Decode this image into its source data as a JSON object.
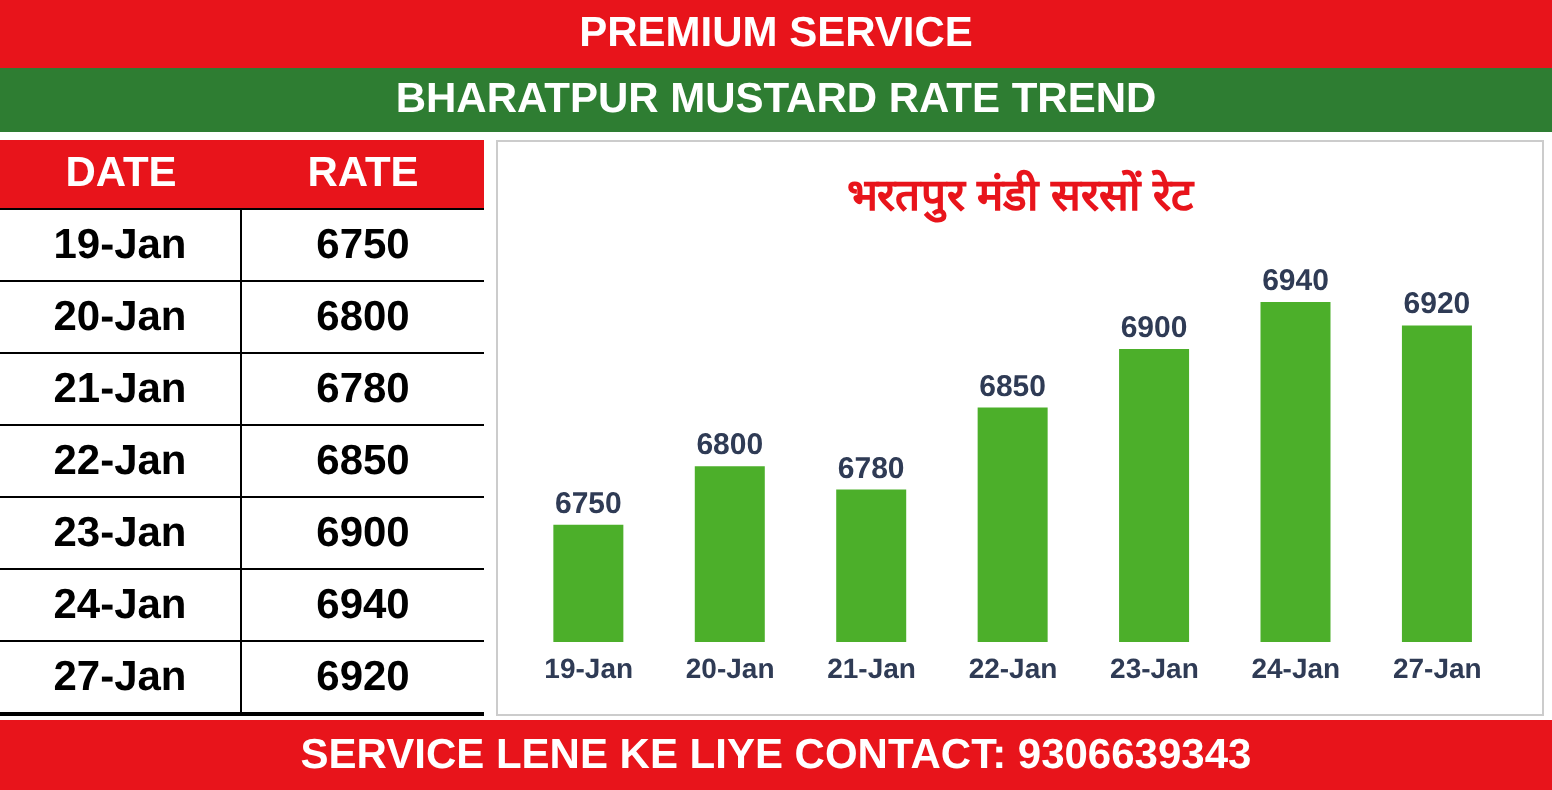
{
  "chart_data": {
    "type": "bar",
    "title": "BHARATPUR MUSTARD RATE TREND",
    "subtitle": "भरतपुर मंडी सरसों रेट",
    "categories": [
      "19-Jan",
      "20-Jan",
      "21-Jan",
      "22-Jan",
      "23-Jan",
      "24-Jan",
      "27-Jan"
    ],
    "values": [
      6750,
      6800,
      6780,
      6850,
      6900,
      6940,
      6920
    ],
    "color": "#4caf2a",
    "value_labels": [
      "6750",
      "6800",
      "6780",
      "6850",
      "6900",
      "6940",
      "6920"
    ],
    "ylim": [
      6650,
      6940
    ],
    "grid": false,
    "legend": false,
    "annotations": [
      "PREMIUM SERVICE",
      "DATE",
      "RATE",
      "SERVICE LENE KE LIYE CONTACT: 9306639343"
    ]
  }
}
